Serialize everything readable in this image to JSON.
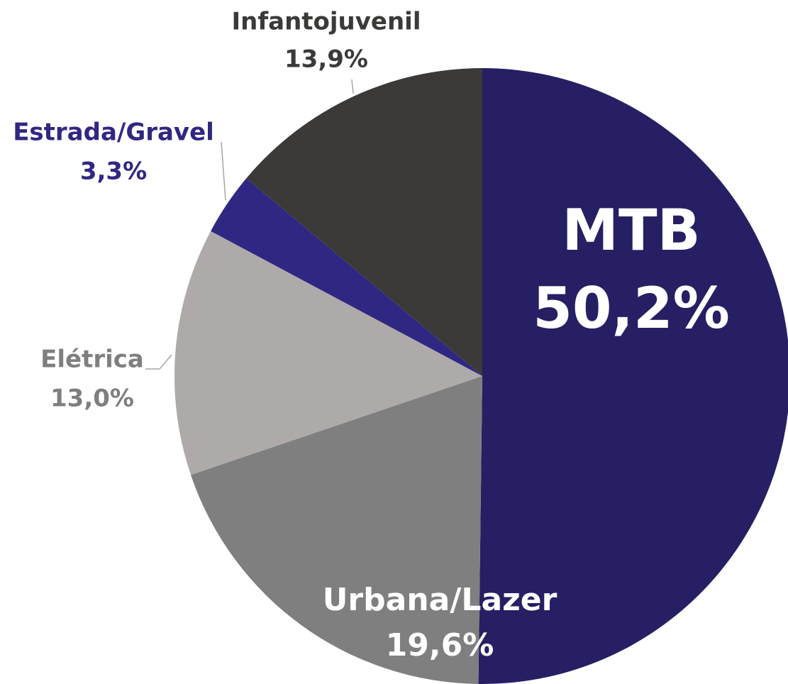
{
  "chart_data": {
    "type": "pie",
    "categories": [
      "MTB",
      "Urbana/Lazer",
      "Elétrica",
      "Estrada/Gravel",
      "Infantojuvenil"
    ],
    "values": [
      50.2,
      19.6,
      13.0,
      3.3,
      13.9
    ],
    "value_labels": [
      "50,2%",
      "19,6%",
      "13,0%",
      "3,3%",
      "13,9%"
    ],
    "colors": [
      "#261f63",
      "#7f7f7f",
      "#aeaaaa",
      "#302783",
      "#3b3a39"
    ]
  }
}
